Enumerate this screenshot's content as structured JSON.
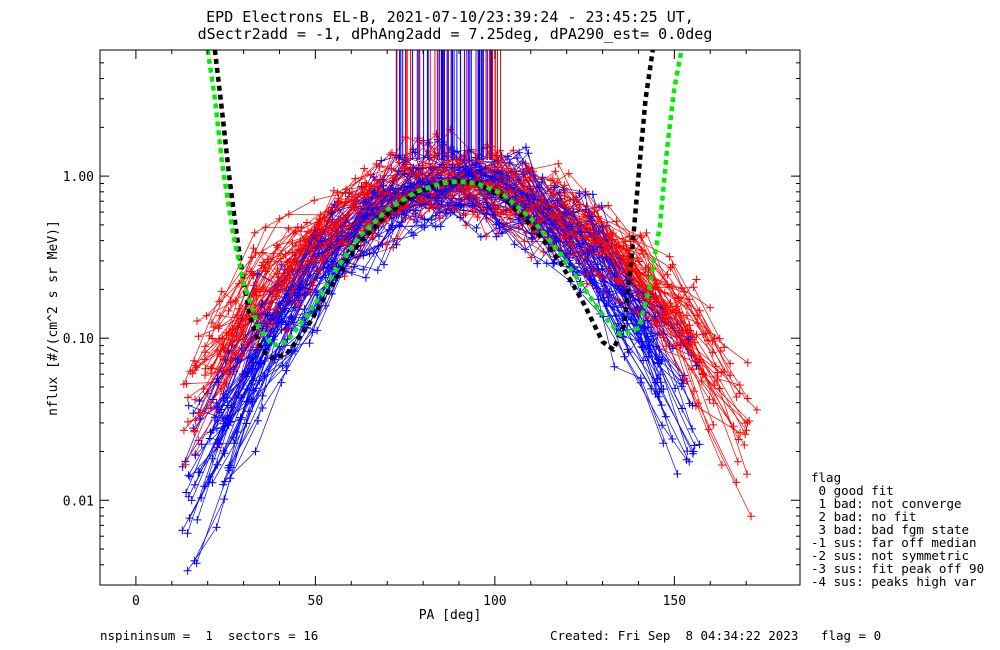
{
  "chart_data": {
    "type": "scatter",
    "title": "EPD Electrons EL-B, 2021-07-10/23:39:24 - 23:45:25 UT,",
    "subtitle": "dSectr2add = -1, dPhAng2add = 7.25deg, dPA290_est=   0.0deg",
    "xlabel": "PA [deg]",
    "ylabel": "nflux [#/(cm^2 s sr MeV)]",
    "xlim": [
      -10,
      185
    ],
    "ylim": [
      0.003,
      6
    ],
    "yscale": "log",
    "x_ticks": [
      {
        "value": 0,
        "label": "0"
      },
      {
        "value": 50,
        "label": "50"
      },
      {
        "value": 100,
        "label": "100"
      },
      {
        "value": 150,
        "label": "150"
      }
    ],
    "y_ticks": [
      {
        "value": 0.01,
        "label": "0.01"
      },
      {
        "value": 0.1,
        "label": "0.10"
      },
      {
        "value": 1.0,
        "label": "1.00"
      }
    ],
    "series": [
      {
        "color": "#0000ff",
        "marker": "plus",
        "style": "thin-lines-with-markers"
      },
      {
        "color": "#ff0000",
        "marker": "plus",
        "style": "thin-lines-with-markers"
      }
    ],
    "fits": [
      {
        "color": "#000000",
        "style": "dashed",
        "points": [
          [
            22,
            6
          ],
          [
            24,
            2.5
          ],
          [
            26,
            1.0
          ],
          [
            28,
            0.45
          ],
          [
            30,
            0.22
          ],
          [
            32,
            0.13
          ],
          [
            35,
            0.085
          ],
          [
            38,
            0.075
          ],
          [
            42,
            0.08
          ],
          [
            48,
            0.12
          ],
          [
            55,
            0.22
          ],
          [
            62,
            0.38
          ],
          [
            70,
            0.58
          ],
          [
            78,
            0.78
          ],
          [
            85,
            0.9
          ],
          [
            90,
            0.93
          ],
          [
            95,
            0.9
          ],
          [
            102,
            0.75
          ],
          [
            110,
            0.5
          ],
          [
            118,
            0.3
          ],
          [
            125,
            0.16
          ],
          [
            130,
            0.095
          ],
          [
            133,
            0.085
          ],
          [
            136,
            0.12
          ],
          [
            138,
            0.3
          ],
          [
            140,
            1.0
          ],
          [
            142,
            3.0
          ],
          [
            144,
            6
          ]
        ]
      },
      {
        "color": "#00ee00",
        "style": "dashed",
        "points": [
          [
            20,
            6
          ],
          [
            22,
            3.0
          ],
          [
            24,
            1.2
          ],
          [
            27,
            0.45
          ],
          [
            30,
            0.22
          ],
          [
            34,
            0.12
          ],
          [
            38,
            0.09
          ],
          [
            42,
            0.095
          ],
          [
            48,
            0.14
          ],
          [
            55,
            0.25
          ],
          [
            62,
            0.42
          ],
          [
            70,
            0.62
          ],
          [
            78,
            0.8
          ],
          [
            85,
            0.9
          ],
          [
            90,
            0.93
          ],
          [
            95,
            0.9
          ],
          [
            102,
            0.78
          ],
          [
            110,
            0.55
          ],
          [
            118,
            0.34
          ],
          [
            125,
            0.2
          ],
          [
            130,
            0.14
          ],
          [
            135,
            0.105
          ],
          [
            140,
            0.115
          ],
          [
            143,
            0.2
          ],
          [
            146,
            0.5
          ],
          [
            148,
            1.5
          ],
          [
            150,
            3.5
          ],
          [
            152,
            6
          ]
        ]
      }
    ],
    "legend": {
      "position": "right",
      "title": "flag",
      "entries": [
        " 0 good fit",
        " 1 bad: not converge",
        " 2 bad: no fit",
        " 3 bad: bad fgm state",
        "-1 sus: far off median",
        "-2 sus: not symmetric",
        "-3 sus: fit peak off 90",
        "-4 sus: peaks high var"
      ]
    }
  },
  "footer": {
    "left": "nspininsum =  1  sectors = 16",
    "right": "Created: Fri Sep  8 04:34:22 2023   flag = 0"
  }
}
